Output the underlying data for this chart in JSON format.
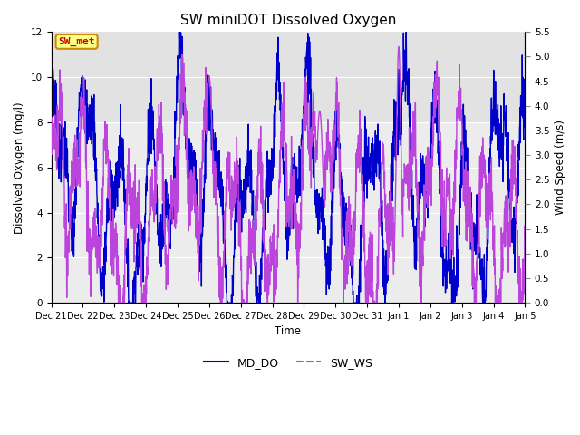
{
  "title": "SW miniDOT Dissolved Oxygen",
  "xlabel": "Time",
  "ylabel_left": "Dissolved Oxygen (mg/l)",
  "ylabel_right": "Wind Speed (m/s)",
  "ylim_left": [
    0,
    12
  ],
  "ylim_right": [
    0,
    5.5
  ],
  "yticks_left": [
    0,
    2,
    4,
    6,
    8,
    10,
    12
  ],
  "yticks_right": [
    0.0,
    0.5,
    1.0,
    1.5,
    2.0,
    2.5,
    3.0,
    3.5,
    4.0,
    4.5,
    5.0,
    5.5
  ],
  "line_color_do": "#0000cc",
  "line_color_ws": "#bb44dd",
  "legend_labels": [
    "MD_DO",
    "SW_WS"
  ],
  "annotation_text": "SW_met",
  "annotation_color": "#cc0000",
  "annotation_box_color": "#ffff88",
  "annotation_box_edge": "#cc8800",
  "bg_color_upper": "#e0e0e0",
  "bg_color_lower": "#f0f0f0",
  "grid_color": "#dddddd",
  "n_points": 2160,
  "linewidth_do": 1.0,
  "linewidth_ws": 1.0
}
